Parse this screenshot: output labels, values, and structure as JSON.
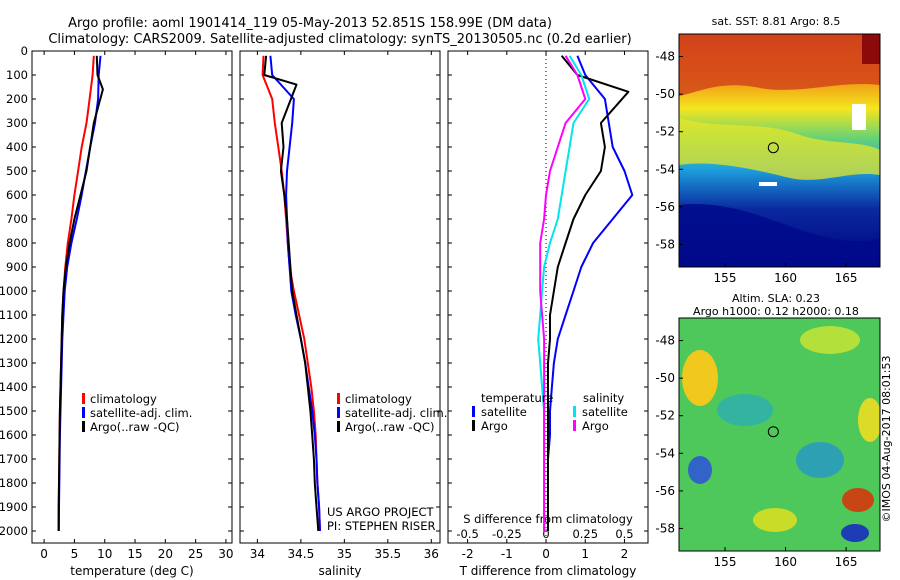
{
  "header": {
    "title_line1": "Argo profile: aoml 1901414_119 05-May-2013 52.851S 158.99E (DM data)",
    "title_line2": "Climatology: CARS2009. Satellite-adjusted climatology: synTS_20130505.nc (0.2d earlier)"
  },
  "depth_ticks": [
    0,
    100,
    200,
    300,
    400,
    500,
    600,
    700,
    800,
    900,
    1000,
    1100,
    1200,
    1300,
    1400,
    1500,
    1600,
    1700,
    1800,
    1900,
    2000
  ],
  "colors": {
    "climatology": "#ff0000",
    "satellite": "#0000ff",
    "argo": "#000000",
    "sal_satellite": "#00e5ee",
    "sal_argo": "#ff00ff"
  },
  "legend": {
    "climatology": "climatology",
    "satellite": "satellite-adj. clim.",
    "argo": "Argo(..raw -QC)",
    "diff_temperature": "temperature",
    "diff_salinity": "salinity",
    "diff_satellite": "satellite",
    "diff_argo": "Argo"
  },
  "project_note": {
    "line1": "US ARGO PROJECT",
    "line2": "PI: STEPHEN RISER"
  },
  "chart_data": [
    {
      "type": "line",
      "xlabel": "temperature (deg C)",
      "xlim": [
        -2,
        31
      ],
      "ylim": [
        2050,
        0
      ],
      "xticks": [
        0,
        5,
        10,
        15,
        20,
        25,
        30
      ],
      "series": [
        {
          "name": "climatology",
          "color_key": "climatology",
          "x": [
            8.2,
            8.0,
            7.5,
            7.0,
            6.2,
            5.6,
            5.0,
            4.5,
            3.9,
            3.5,
            3.2,
            3.0,
            2.9,
            2.8,
            2.7,
            2.6,
            2.55,
            2.5,
            2.45,
            2.4,
            2.4
          ],
          "y": [
            20,
            100,
            200,
            300,
            400,
            500,
            600,
            700,
            800,
            900,
            1000,
            1100,
            1200,
            1300,
            1400,
            1500,
            1600,
            1700,
            1800,
            1900,
            2000
          ]
        },
        {
          "name": "satellite-adj. clim.",
          "color_key": "satellite",
          "x": [
            9.3,
            9.0,
            8.9,
            8.4,
            7.6,
            6.9,
            6.2,
            5.4,
            4.5,
            3.8,
            3.4,
            3.2,
            3.0,
            2.9,
            2.8,
            2.7,
            2.6,
            2.55,
            2.5,
            2.45,
            2.4
          ],
          "y": [
            20,
            100,
            200,
            300,
            400,
            500,
            600,
            700,
            800,
            900,
            1000,
            1100,
            1200,
            1300,
            1400,
            1500,
            1600,
            1700,
            1800,
            1900,
            2000
          ]
        },
        {
          "name": "Argo(..raw -QC)",
          "color_key": "argo",
          "x": [
            8.7,
            8.8,
            9.7,
            8.2,
            7.6,
            7.0,
            6.0,
            5.0,
            4.2,
            3.6,
            3.2,
            3.0,
            2.9,
            2.8,
            2.7,
            2.6,
            2.55,
            2.5,
            2.45,
            2.4,
            2.4
          ],
          "y": [
            20,
            100,
            160,
            300,
            400,
            500,
            600,
            700,
            800,
            900,
            1000,
            1100,
            1200,
            1300,
            1400,
            1500,
            1600,
            1700,
            1800,
            1900,
            2000
          ]
        }
      ]
    },
    {
      "type": "line",
      "xlabel": "salinity",
      "xlim": [
        33.8,
        36.1
      ],
      "ylim": [
        2050,
        0
      ],
      "xticks": [
        34,
        34.5,
        35,
        35.5,
        36
      ],
      "xtick_labels": [
        "34",
        "34.5",
        "35",
        "35.5",
        "36"
      ],
      "series": [
        {
          "name": "climatology",
          "color_key": "climatology",
          "x": [
            34.07,
            34.06,
            34.17,
            34.2,
            34.24,
            34.28,
            34.31,
            34.33,
            34.35,
            34.37,
            34.42,
            34.48,
            34.54,
            34.58,
            34.62,
            34.65,
            34.67,
            34.68,
            34.69,
            34.71,
            34.72
          ],
          "y": [
            20,
            100,
            200,
            300,
            400,
            500,
            600,
            700,
            800,
            900,
            1000,
            1100,
            1200,
            1300,
            1400,
            1500,
            1600,
            1700,
            1800,
            1900,
            2000
          ]
        },
        {
          "name": "satellite-adj. clim.",
          "color_key": "satellite",
          "x": [
            34.15,
            34.17,
            34.42,
            34.4,
            34.37,
            34.34,
            34.33,
            34.34,
            34.35,
            34.37,
            34.39,
            34.44,
            34.5,
            34.55,
            34.59,
            34.63,
            34.66,
            34.68,
            34.69,
            34.71,
            34.72
          ],
          "y": [
            20,
            100,
            200,
            300,
            400,
            500,
            600,
            700,
            800,
            900,
            1000,
            1100,
            1200,
            1300,
            1400,
            1500,
            1600,
            1700,
            1800,
            1900,
            2000
          ]
        },
        {
          "name": "Argo(..raw -QC)",
          "color_key": "argo",
          "x": [
            34.1,
            34.08,
            34.45,
            34.28,
            34.3,
            34.27,
            34.31,
            34.34,
            34.36,
            34.38,
            34.4,
            34.45,
            34.5,
            34.55,
            34.58,
            34.61,
            34.63,
            34.65,
            34.66,
            34.68,
            34.7
          ],
          "y": [
            20,
            100,
            140,
            300,
            400,
            500,
            600,
            700,
            800,
            900,
            1000,
            1100,
            1200,
            1300,
            1400,
            1500,
            1600,
            1700,
            1800,
            1900,
            2000
          ]
        }
      ]
    },
    {
      "type": "line",
      "xlabel": "T difference from climatology",
      "top_label": "S difference from climatology",
      "xlim": [
        -2.5,
        2.6
      ],
      "ylim": [
        2050,
        0
      ],
      "xticks": [
        -2,
        -1,
        0,
        1,
        2
      ],
      "top_ticks": [
        -0.5,
        -0.25,
        0,
        0.25,
        0.5
      ],
      "top_tick_labels": [
        "-0.5",
        "-0.25",
        "0",
        "0.25",
        "0.5"
      ],
      "series": [
        {
          "name": "T satellite",
          "color_key": "satellite",
          "x": [
            0.8,
            1.0,
            1.5,
            1.6,
            1.7,
            2.0,
            2.2,
            1.7,
            1.2,
            0.9,
            0.7,
            0.5,
            0.3,
            0.2,
            0.15,
            0.1,
            0.1,
            0.05,
            0.05,
            0.05,
            0.05
          ],
          "y": [
            20,
            100,
            200,
            300,
            400,
            500,
            600,
            700,
            800,
            900,
            1000,
            1100,
            1200,
            1300,
            1400,
            1500,
            1600,
            1700,
            1800,
            1900,
            2000
          ]
        },
        {
          "name": "T Argo",
          "color_key": "argo",
          "x": [
            0.4,
            0.8,
            2.1,
            1.4,
            1.5,
            1.4,
            1.0,
            0.7,
            0.5,
            0.3,
            0.2,
            0.1,
            0.1,
            0.05,
            0.05,
            0.05,
            0.05,
            0.05,
            0.05,
            0.05,
            0.05
          ],
          "y": [
            20,
            100,
            170,
            300,
            400,
            500,
            600,
            700,
            800,
            900,
            1000,
            1100,
            1200,
            1300,
            1400,
            1500,
            1600,
            1700,
            1800,
            1900,
            2000
          ]
        },
        {
          "name": "S satellite",
          "color_key": "sal_satellite",
          "x": [
            0.6,
            0.9,
            1.1,
            0.7,
            0.6,
            0.5,
            0.4,
            0.3,
            0.1,
            -0.05,
            -0.1,
            -0.15,
            -0.2,
            -0.15,
            -0.1,
            -0.05,
            -0.05,
            -0.05,
            -0.05,
            -0.05,
            -0.05
          ],
          "y": [
            20,
            100,
            200,
            300,
            400,
            500,
            600,
            700,
            800,
            900,
            1000,
            1100,
            1200,
            1300,
            1400,
            1500,
            1600,
            1700,
            1800,
            1900,
            2000
          ]
        },
        {
          "name": "S Argo",
          "color_key": "sal_argo",
          "x": [
            0.5,
            0.8,
            1.0,
            0.5,
            0.3,
            0.1,
            0.0,
            -0.05,
            -0.15,
            -0.15,
            -0.15,
            -0.1,
            -0.05,
            -0.05,
            -0.05,
            -0.05,
            -0.05,
            -0.05,
            -0.05,
            -0.05,
            -0.05
          ],
          "y": [
            20,
            100,
            200,
            300,
            400,
            500,
            600,
            700,
            800,
            900,
            1000,
            1100,
            1200,
            1300,
            1400,
            1500,
            1600,
            1700,
            1800,
            1900,
            2000
          ]
        }
      ]
    },
    {
      "type": "heatmap",
      "title": "sat. SST: 8.81 Argo: 8.5",
      "xticks": [
        155,
        160,
        165
      ],
      "yticks": [
        -48,
        -50,
        -52,
        -54,
        -56,
        -58
      ],
      "xlim": [
        151.2,
        167.8
      ],
      "ylim": [
        -59.2,
        -46.8
      ],
      "profile_marker": {
        "lon": 158.99,
        "lat": -52.851
      }
    },
    {
      "type": "heatmap",
      "title": "Altim. SLA: 0.23",
      "subtitle": "Argo h1000: 0.12 h2000: 0.18",
      "xticks": [
        155,
        160,
        165
      ],
      "yticks": [
        -48,
        -50,
        -52,
        -54,
        -56,
        -58
      ],
      "xlim": [
        151.2,
        167.8
      ],
      "ylim": [
        -59.2,
        -46.8
      ],
      "profile_marker": {
        "lon": 158.99,
        "lat": -52.851
      }
    }
  ],
  "credit": "©IMOS 04-Aug-2017 08:01:53"
}
